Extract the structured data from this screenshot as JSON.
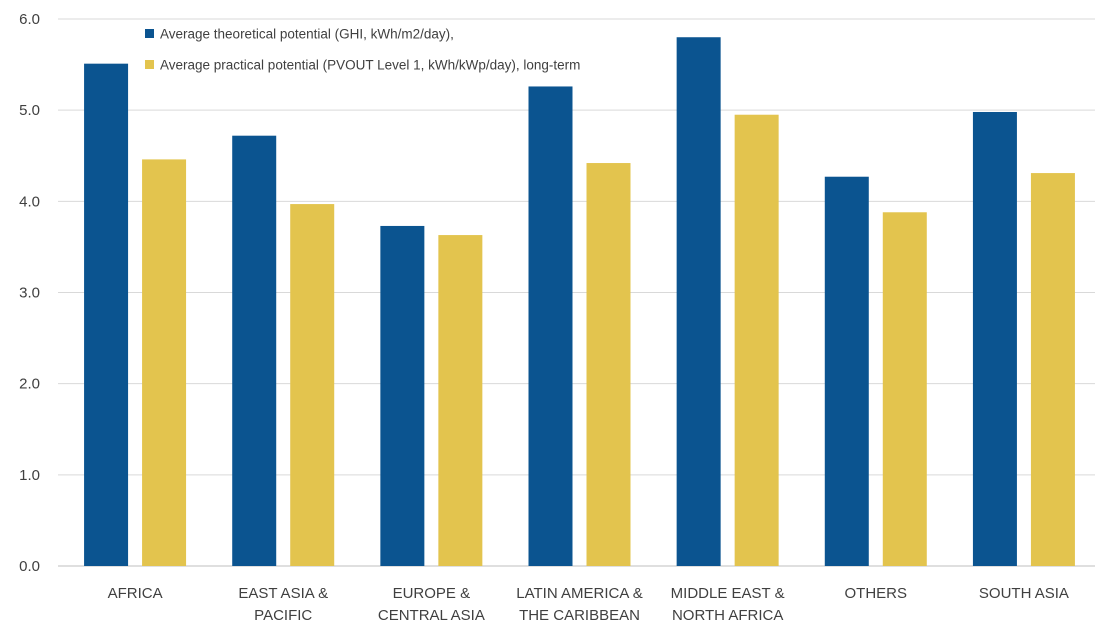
{
  "chart_data": {
    "type": "bar",
    "categories": [
      [
        "AFRICA"
      ],
      [
        "EAST ASIA &",
        "PACIFIC"
      ],
      [
        "EUROPE &",
        "CENTRAL ASIA"
      ],
      [
        "LATIN AMERICA &",
        "THE CARIBBEAN"
      ],
      [
        "MIDDLE EAST &",
        "NORTH AFRICA"
      ],
      [
        "OTHERS"
      ],
      [
        "SOUTH ASIA"
      ]
    ],
    "series": [
      {
        "name": "Average theoretical potential (GHI, kWh/m2/day),",
        "color": "#0b5490",
        "values": [
          5.51,
          4.72,
          3.73,
          5.26,
          5.8,
          4.27,
          4.98
        ]
      },
      {
        "name": "Average practical potential (PVOUT Level 1, kWh/kWp/day), long-term",
        "color": "#e3c44e",
        "values": [
          4.46,
          3.97,
          3.63,
          4.42,
          4.95,
          3.88,
          4.31
        ]
      }
    ],
    "y_ticks": [
      "0.0",
      "1.0",
      "2.0",
      "3.0",
      "4.0",
      "5.0",
      "6.0"
    ],
    "ylim": [
      0,
      6
    ],
    "grid": true,
    "legend_position": "top-left",
    "title": "",
    "xlabel": "",
    "ylabel": ""
  }
}
